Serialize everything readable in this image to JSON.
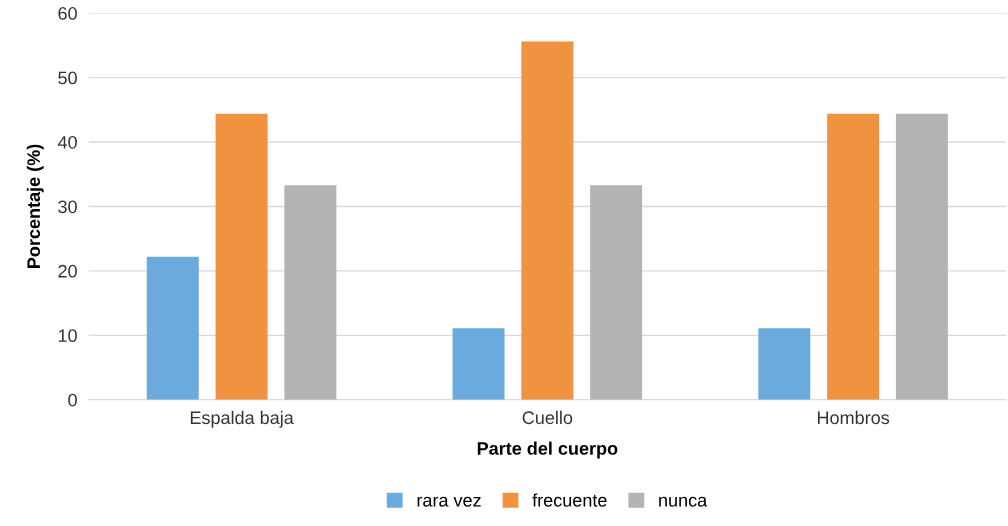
{
  "chart_data": {
    "type": "bar",
    "xlabel": "Parte del cuerpo",
    "ylabel": "Porcentaje (%)",
    "categories": [
      "Espalda baja",
      "Cuello",
      "Hombros"
    ],
    "series": [
      {
        "name": "rara vez",
        "color": "#6aaadd",
        "values": [
          22.2,
          11.1,
          11.1
        ]
      },
      {
        "name": "frecuente",
        "color": "#f19240",
        "values": [
          44.4,
          55.6,
          44.4
        ]
      },
      {
        "name": "nunca",
        "color": "#b3b3b3",
        "values": [
          33.3,
          33.3,
          44.4
        ]
      }
    ],
    "ylim": [
      0,
      60
    ],
    "yticks": [
      0,
      10,
      20,
      30,
      40,
      50,
      60
    ],
    "grid": "y",
    "legend": "bottom"
  }
}
